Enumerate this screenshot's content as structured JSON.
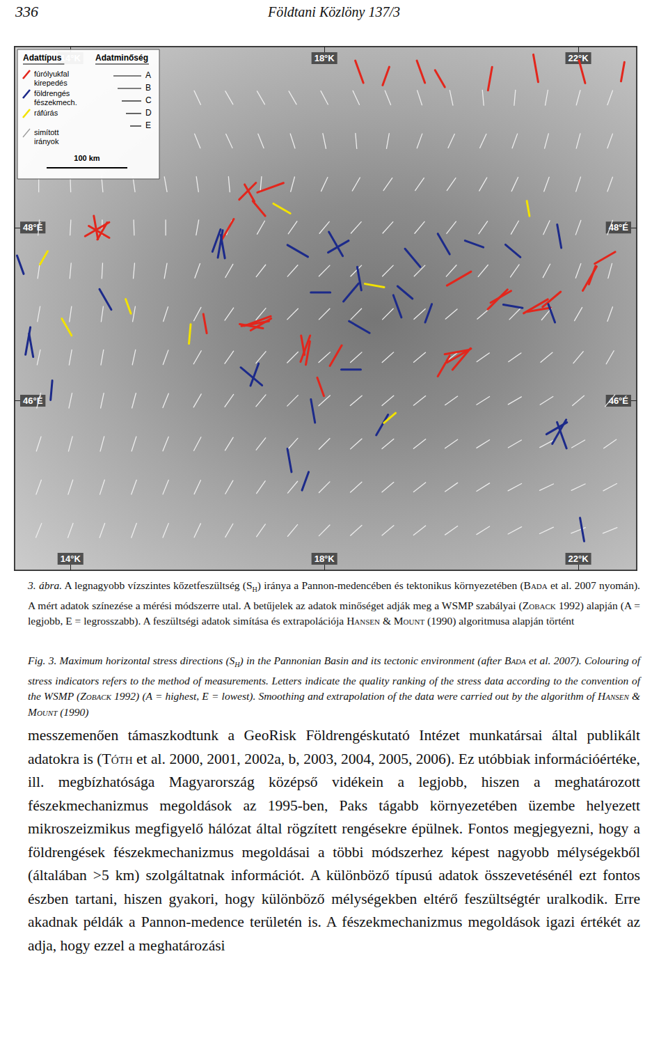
{
  "header": {
    "page": "336",
    "journal": "Földtani Közlöny 137/3"
  },
  "chart_data": {
    "type": "map",
    "xlim": [
      13.12,
      22.92
    ],
    "ylim": [
      44.04,
      50.09
    ],
    "xticks": [
      {
        "value": 14,
        "label": "14°K"
      },
      {
        "value": 18,
        "label": "18°K"
      },
      {
        "value": 22,
        "label": "22°K"
      }
    ],
    "yticks": [
      {
        "value": 46,
        "label": "46°É"
      },
      {
        "value": 48,
        "label": "48°É"
      }
    ],
    "grid": false,
    "legend": "upper left",
    "legend_box": {
      "type_title": "Adattípus",
      "quality_title": "Adatminőség",
      "types": [
        {
          "label": "fúrólyukfal kirepedés",
          "color": "#e3261c"
        },
        {
          "label": "földrengés fészekmech.",
          "color": "#1c2a8a"
        },
        {
          "label": "ráfúrás",
          "color": "#f2e200"
        },
        {
          "label": "simított irányok",
          "color": "#ededed"
        }
      ],
      "qualities": [
        "A",
        "B",
        "C",
        "D",
        "E"
      ],
      "scale": "100 km"
    },
    "indicators": [
      [
        0,
        "A",
        14.42,
        47.98,
        60
      ],
      [
        0,
        "B",
        14.45,
        47.95,
        120
      ],
      [
        0,
        "B",
        14.4,
        48.0,
        170
      ],
      [
        0,
        "C",
        14.5,
        47.96,
        30
      ],
      [
        0,
        "B",
        16.79,
        48.42,
        45
      ],
      [
        0,
        "C",
        16.82,
        48.4,
        150
      ],
      [
        0,
        "A",
        17.15,
        48.46,
        70
      ],
      [
        0,
        "C",
        16.97,
        48.22,
        140
      ],
      [
        0,
        "B",
        16.48,
        47.98,
        30
      ],
      [
        0,
        "A",
        16.91,
        46.89,
        80
      ],
      [
        0,
        "A",
        16.95,
        46.92,
        70
      ],
      [
        0,
        "B",
        16.85,
        46.86,
        100
      ],
      [
        0,
        "B",
        17.0,
        46.88,
        60
      ],
      [
        0,
        "C",
        16.12,
        46.89,
        170
      ],
      [
        0,
        "A",
        17.7,
        46.6,
        20
      ],
      [
        0,
        "B",
        17.74,
        46.55,
        10
      ],
      [
        0,
        "C",
        17.66,
        46.64,
        170
      ],
      [
        0,
        "B",
        18.18,
        46.52,
        30
      ],
      [
        0,
        "C",
        17.94,
        46.16,
        160
      ],
      [
        0,
        "A",
        20.12,
        47.41,
        60
      ],
      [
        0,
        "A",
        20.73,
        47.17,
        45
      ],
      [
        0,
        "B",
        20.78,
        47.2,
        60
      ],
      [
        0,
        "A",
        21.33,
        47.09,
        60
      ],
      [
        0,
        "B",
        21.38,
        47.05,
        80
      ],
      [
        0,
        "B",
        21.58,
        47.17,
        50
      ],
      [
        0,
        "A",
        22.18,
        47.41,
        30
      ],
      [
        0,
        "C",
        22.22,
        47.45,
        20
      ],
      [
        0,
        "B",
        22.42,
        47.65,
        60
      ],
      [
        0,
        "A",
        20.12,
        46.52,
        60
      ],
      [
        0,
        "A",
        20.16,
        46.48,
        40
      ],
      [
        0,
        "B",
        20.08,
        46.56,
        80
      ],
      [
        0,
        "B",
        19.88,
        46.4,
        30
      ],
      [
        0,
        "B",
        18.55,
        49.8,
        160
      ],
      [
        0,
        "C",
        18.97,
        49.75,
        20
      ],
      [
        0,
        "B",
        19.52,
        49.8,
        160
      ],
      [
        0,
        "C",
        19.82,
        49.72,
        150
      ],
      [
        0,
        "B",
        20.61,
        49.72,
        10
      ],
      [
        0,
        "A",
        21.33,
        49.84,
        170
      ],
      [
        0,
        "B",
        22.06,
        49.8,
        165
      ],
      [
        0,
        "C",
        22.7,
        49.8,
        10
      ],
      [
        1,
        "A",
        16.36,
        47.81,
        10
      ],
      [
        1,
        "B",
        16.4,
        47.78,
        170
      ],
      [
        1,
        "B",
        16.3,
        47.85,
        20
      ],
      [
        1,
        "A",
        13.33,
        46.69,
        10
      ],
      [
        1,
        "B",
        13.38,
        46.64,
        170
      ],
      [
        1,
        "C",
        13.7,
        46.12,
        5
      ],
      [
        1,
        "C",
        13.21,
        47.57,
        160
      ],
      [
        1,
        "B",
        14.55,
        47.17,
        150
      ],
      [
        1,
        "A",
        16.85,
        46.28,
        130
      ],
      [
        1,
        "B",
        16.9,
        46.3,
        20
      ],
      [
        1,
        "B",
        17.58,
        47.73,
        120
      ],
      [
        1,
        "A",
        18.18,
        47.81,
        150
      ],
      [
        1,
        "B",
        18.22,
        47.78,
        60
      ],
      [
        1,
        "B",
        18.55,
        47.41,
        170
      ],
      [
        1,
        "C",
        17.94,
        47.25,
        90
      ],
      [
        1,
        "B",
        18.42,
        47.25,
        40
      ],
      [
        1,
        "B",
        19.39,
        47.65,
        140
      ],
      [
        1,
        "C",
        19.27,
        47.25,
        130
      ],
      [
        1,
        "B",
        19.15,
        47.09,
        160
      ],
      [
        1,
        "C",
        19.64,
        47.01,
        20
      ],
      [
        1,
        "B",
        18.55,
        46.85,
        120
      ],
      [
        1,
        "C",
        18.42,
        46.36,
        90
      ],
      [
        1,
        "B",
        18.91,
        45.72,
        30
      ],
      [
        1,
        "B",
        17.45,
        45.31,
        170
      ],
      [
        1,
        "C",
        17.7,
        45.07,
        20
      ],
      [
        1,
        "B",
        17.82,
        45.88,
        170
      ],
      [
        1,
        "A",
        21.7,
        45.64,
        30
      ],
      [
        1,
        "A",
        21.74,
        45.6,
        160
      ],
      [
        1,
        "B",
        21.66,
        45.68,
        60
      ],
      [
        1,
        "B",
        21.7,
        47.9,
        170
      ],
      [
        1,
        "C",
        20.97,
        47.73,
        130
      ],
      [
        1,
        "C",
        20.36,
        47.81,
        110
      ],
      [
        1,
        "B",
        19.88,
        47.81,
        150
      ],
      [
        1,
        "B",
        22.06,
        44.51,
        170
      ],
      [
        1,
        "C",
        21.58,
        47.01,
        160
      ],
      [
        1,
        "C",
        20.97,
        47.09,
        100
      ],
      [
        2,
        "C",
        17.33,
        48.22,
        120
      ],
      [
        2,
        "D",
        13.58,
        47.65,
        30
      ],
      [
        2,
        "C",
        13.94,
        46.85,
        150
      ],
      [
        2,
        "D",
        14.91,
        47.09,
        160
      ],
      [
        2,
        "C",
        15.88,
        46.77,
        5
      ],
      [
        2,
        "C",
        18.79,
        47.33,
        100
      ],
      [
        2,
        "D",
        21.21,
        48.22,
        170
      ],
      [
        2,
        "D",
        19.03,
        45.8,
        50
      ]
    ],
    "smoothed": {
      "legend_index": 3,
      "lons": [
        13.5,
        14,
        14.5,
        15,
        15.5,
        16,
        16.5,
        17,
        17.5,
        18,
        18.5,
        19,
        19.5,
        20,
        20.5,
        21,
        21.5,
        22,
        22.5
      ],
      "lats": [
        49.5,
        49,
        48.5,
        48,
        47.5,
        47,
        46.5,
        46,
        45.5,
        45,
        44.5
      ],
      "azimuths": [
        [
          null,
          null,
          null,
          null,
          null,
          155,
          150,
          150,
          150,
          152,
          155,
          158,
          162,
          168,
          175,
          5,
          10,
          15,
          20
        ],
        [
          null,
          null,
          null,
          null,
          null,
          158,
          155,
          158,
          162,
          168,
          175,
          10,
          20,
          25,
          25,
          20,
          15,
          15,
          20
        ],
        [
          0,
          178,
          175,
          172,
          170,
          172,
          175,
          5,
          15,
          25,
          30,
          35,
          35,
          35,
          30,
          25,
          20,
          18,
          20
        ],
        [
          5,
          3,
          0,
          178,
          0,
          10,
          20,
          30,
          35,
          40,
          42,
          42,
          40,
          38,
          35,
          30,
          25,
          20,
          20
        ],
        [
          8,
          5,
          3,
          5,
          10,
          20,
          30,
          38,
          42,
          45,
          45,
          45,
          45,
          42,
          40,
          35,
          28,
          20,
          15
        ],
        [
          10,
          8,
          8,
          10,
          18,
          28,
          35,
          40,
          45,
          45,
          45,
          45,
          48,
          50,
          50,
          45,
          40,
          30,
          20
        ],
        [
          12,
          10,
          10,
          12,
          20,
          30,
          35,
          40,
          45,
          48,
          48,
          48,
          50,
          52,
          55,
          55,
          50,
          40,
          30
        ],
        [
          15,
          12,
          12,
          15,
          22,
          30,
          35,
          40,
          45,
          48,
          50,
          50,
          52,
          55,
          58,
          60,
          58,
          50,
          40
        ],
        [
          18,
          15,
          15,
          18,
          22,
          28,
          32,
          38,
          42,
          45,
          48,
          50,
          52,
          55,
          58,
          60,
          62,
          60,
          55
        ],
        [
          20,
          18,
          18,
          20,
          22,
          25,
          30,
          35,
          40,
          45,
          48,
          50,
          52,
          55,
          58,
          62,
          65,
          65,
          62
        ],
        [
          22,
          20,
          20,
          20,
          22,
          25,
          30,
          35,
          40,
          45,
          48,
          50,
          52,
          55,
          58,
          62,
          65,
          68,
          68
        ]
      ]
    }
  },
  "caption_hu": [
    {
      "i": "3. ábra."
    },
    " A legnagyobb vízszintes kőzetfeszültség (S",
    {
      "sub": "H"
    },
    ") iránya a Pannon-medencében és tektonikus környezetében (",
    {
      "sc": "Bada"
    },
    " et al. 2007 nyomán). A mért adatok színezése a mérési módszerre utal. A betűjelek az adatok minőséget adják meg a WSMP szabályai (",
    {
      "sc": "Zoback"
    },
    " 1992) alapján (A = legjobb, E = legrosszabb). A feszültségi adatok simítása és extrapolációja ",
    {
      "sc": "Hansen"
    },
    " & ",
    {
      "sc": "Mount"
    },
    " (1990) algoritmusa alapján történt"
  ],
  "caption_en": [
    "Fig. 3. Maximum horizontal stress directions (S",
    {
      "sub": "H"
    },
    ") in the Pannonian Basin and its tectonic environment (after ",
    {
      "sc": "Bada"
    },
    " et al. 2007). Colouring of stress indicators refers to the method of measurements. Letters indicate the quality ranking of the stress data according to the convention of the WSMP (",
    {
      "sc": "Zoback"
    },
    " 1992) (A = highest, E = lowest). Smoothing and extrapolation of the data were carried out by the algorithm of ",
    {
      "sc": "Hansen"
    },
    " & ",
    {
      "sc": "Mount"
    },
    " (1990)"
  ],
  "body": [
    "messzemenően támaszkodtunk a GeoRisk Földrengéskutató Intézet munkatársai által publikált adatokra is (",
    {
      "sc": "Tóth"
    },
    " et al. 2000, 2001, 2002a, b, 2003, 2004, 2005, 2006). Ez utóbbiak információértéke, ill. megbízhatósága Magyarország középső vidékein a legjobb, hiszen a meghatározott fészekmechanizmus megoldások az 1995-ben, Paks tágabb környezetében üzembe helyezett mikroszeizmikus megfigyelő hálózat által rögzített rengésekre épülnek. Fontos megjegyezni, hogy a földrengések fészekmechanizmus megoldásai a többi módszerhez képest nagyobb mélységekből (általában >5 km) szolgáltatnak információt. A különböző típusú adatok összevetésénél ezt fontos észben tartani, hiszen gyakori, hogy különböző mélységekben eltérő feszültségtér uralkodik. Erre akadnak példák a Pannon-medence területén is. A fészekmechanizmus megoldások igazi értékét az adja, hogy ezzel a meghatározási"
  ]
}
